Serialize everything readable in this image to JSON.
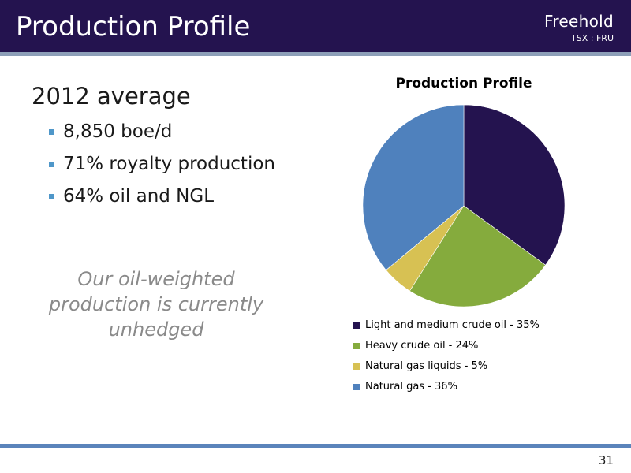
{
  "header": {
    "title": "Production Profile",
    "logo_name": "Freehold",
    "logo_ticker": "TSX : FRU"
  },
  "content": {
    "heading": "2012 average",
    "bullets": [
      "8,850 boe/d",
      "71% royalty production",
      "64% oil and NGL"
    ],
    "tagline": "Our oil-weighted production is currently unhedged"
  },
  "chart_data": {
    "type": "pie",
    "title": "Production Profile",
    "legend_position": "bottom",
    "slices": [
      {
        "label": "Light and medium crude oil - 35%",
        "value": 35,
        "color": "#24134f"
      },
      {
        "label": "Heavy crude oil - 24%",
        "value": 24,
        "color": "#85ab3d"
      },
      {
        "label": "Natural gas liquids - 5%",
        "value": 5,
        "color": "#d7c153"
      },
      {
        "label": "Natural gas - 36%",
        "value": 36,
        "color": "#4f81bd"
      }
    ]
  },
  "colors": {
    "header_bg": "#24134f",
    "header_rule": "#8d9fb8",
    "footer_rule": "#5b84bb",
    "bullet_marker": "#4f97c9",
    "tagline": "#8a8a8a"
  },
  "footer": {
    "page_number": "31"
  }
}
